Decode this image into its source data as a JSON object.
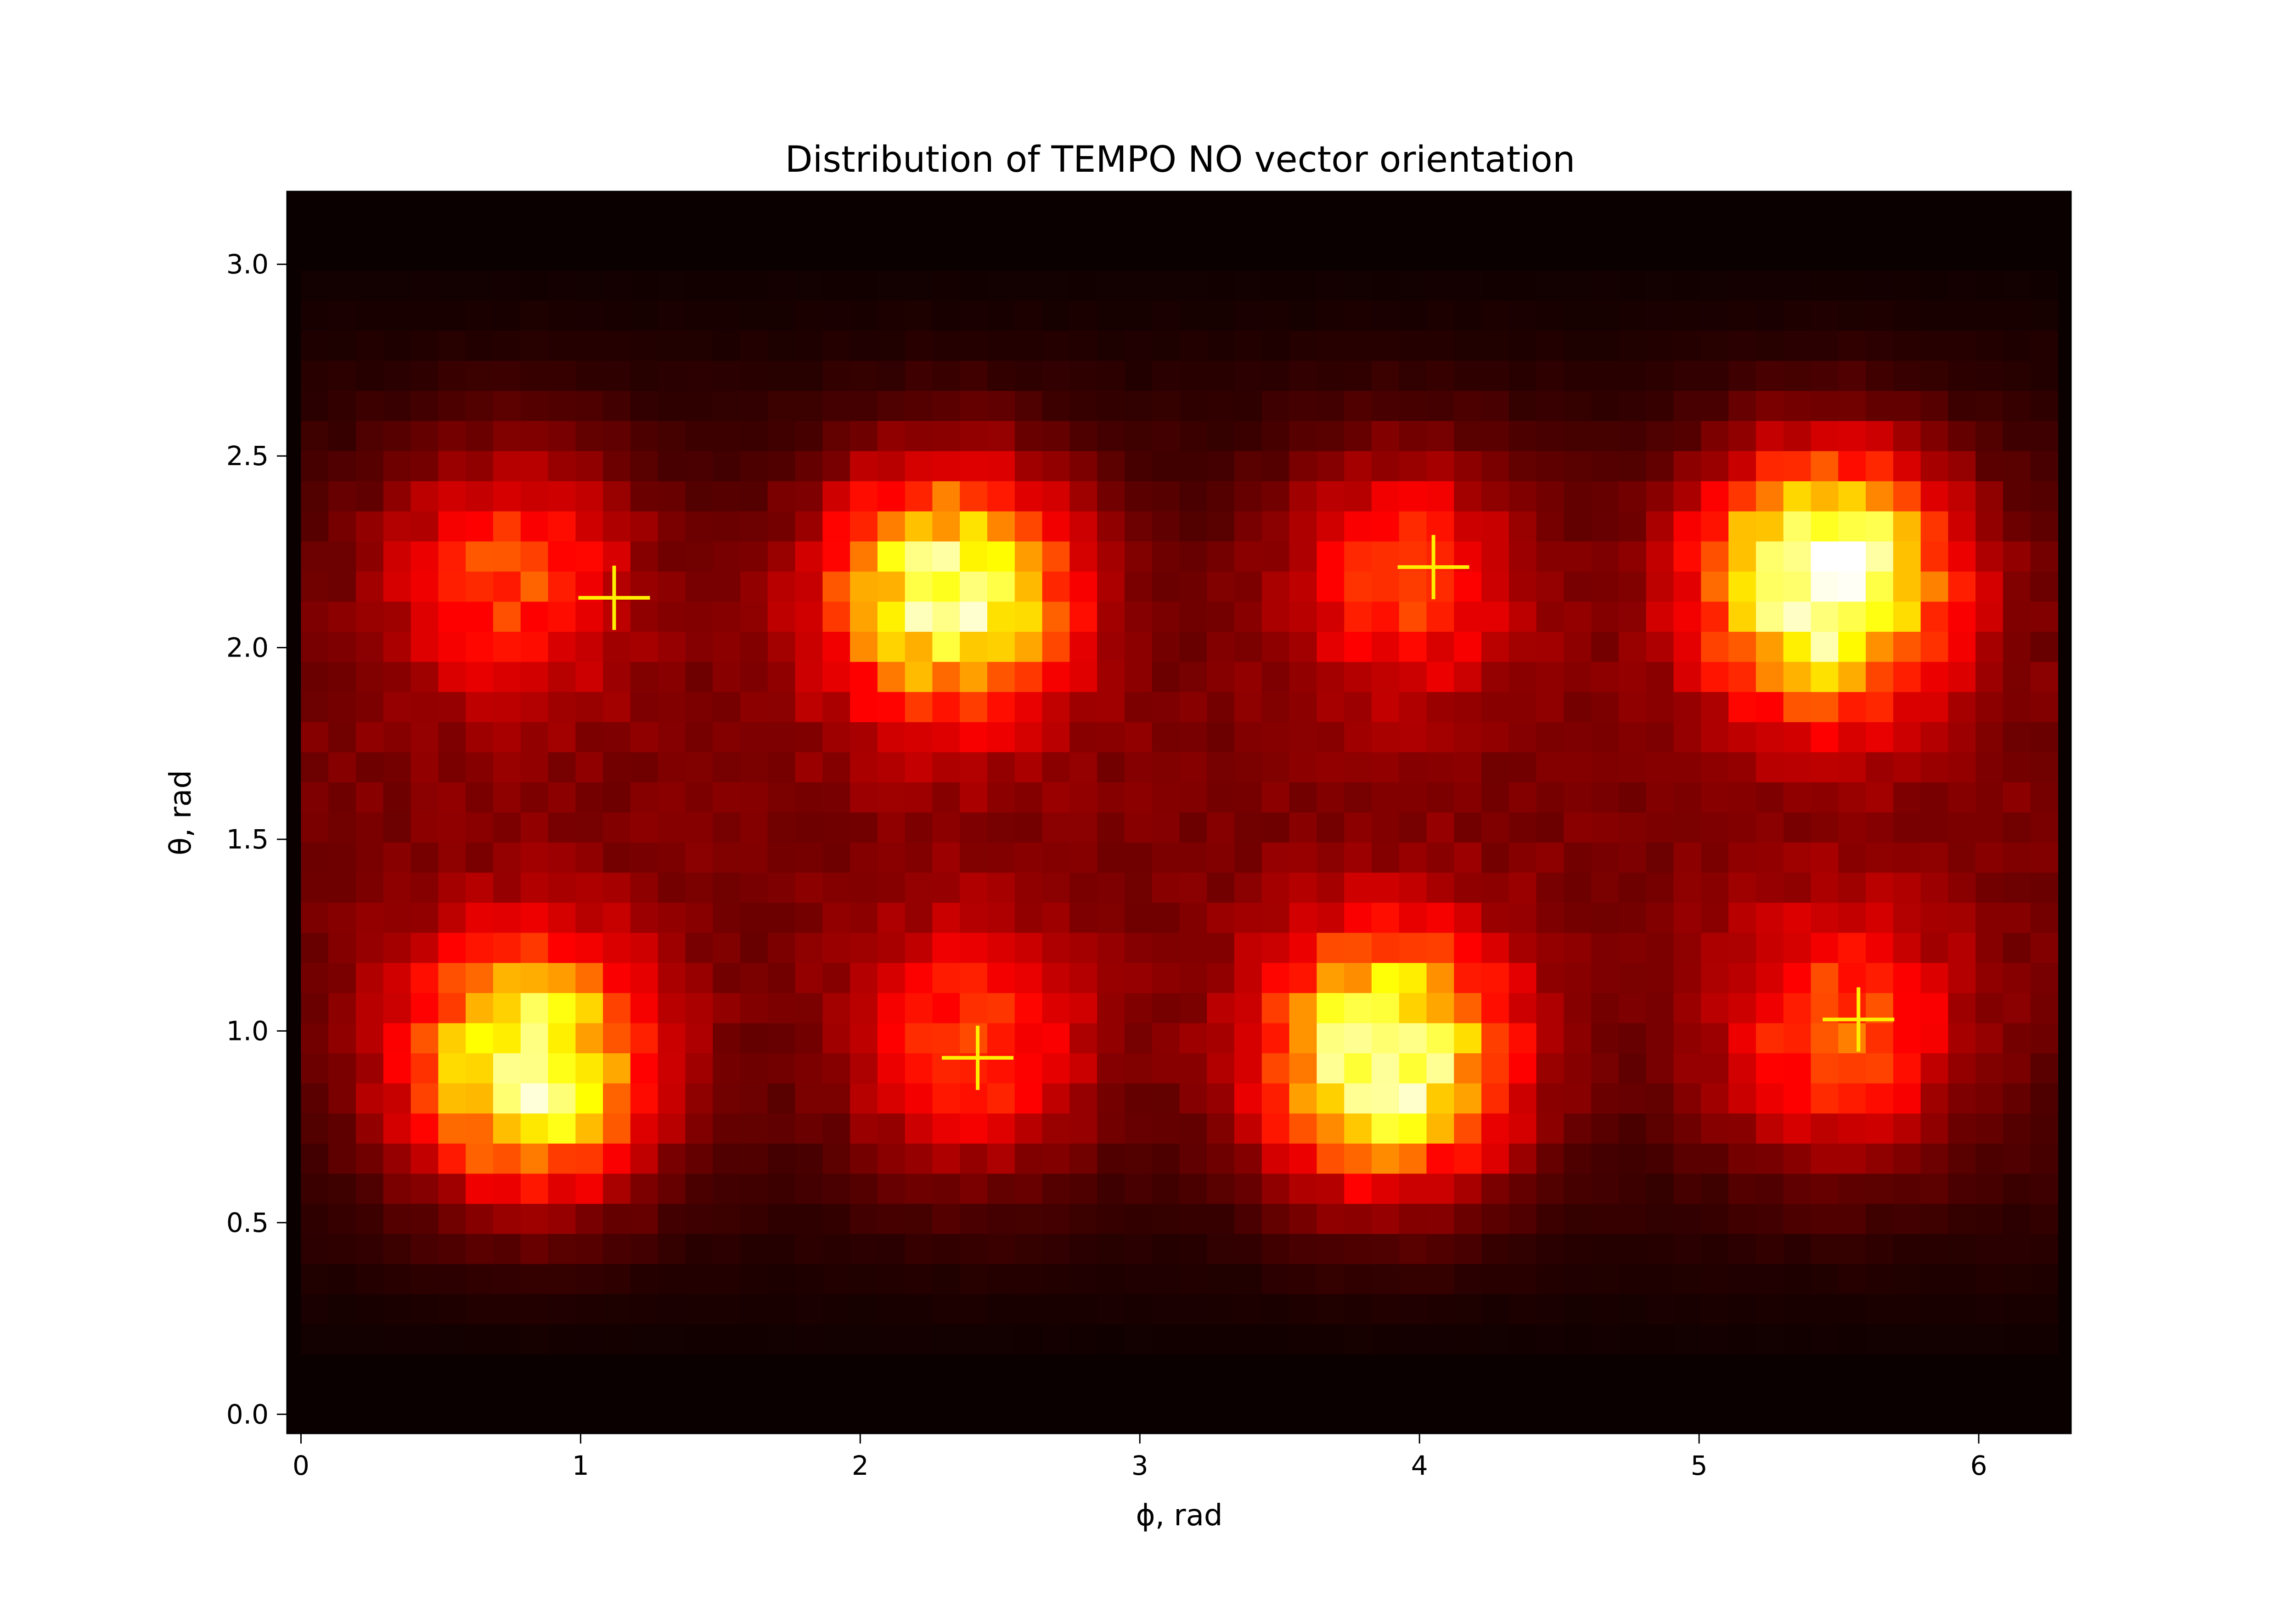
{
  "chart_data": {
    "type": "heatmap",
    "title": "Distribution of TEMPO NO vector orientation",
    "xlabel": "ϕ, rad",
    "ylabel": "θ, rad",
    "xlim": [
      -0.05,
      6.33
    ],
    "ylim": [
      -0.05,
      3.19
    ],
    "x_ticks": [
      0,
      1,
      2,
      3,
      4,
      5,
      6
    ],
    "x_tick_labels": [
      "0",
      "1",
      "2",
      "3",
      "4",
      "5",
      "6"
    ],
    "y_ticks": [
      0.0,
      0.5,
      1.0,
      1.5,
      2.0,
      2.5,
      3.0
    ],
    "y_tick_labels": [
      "0.0",
      "0.5",
      "1.0",
      "1.5",
      "2.0",
      "2.5",
      "3.0"
    ],
    "grid": false,
    "colormap": "hot",
    "bins": {
      "phi_count": 64,
      "theta_count": 40
    },
    "density_peaks": [
      {
        "phi": 0.82,
        "theta": 0.9,
        "intensity": 0.86
      },
      {
        "phi": 2.32,
        "theta": 2.15,
        "intensity": 0.84
      },
      {
        "phi": 3.88,
        "theta": 0.92,
        "intensity": 0.92
      },
      {
        "phi": 5.45,
        "theta": 2.18,
        "intensity": 1.0
      },
      {
        "phi": 0.75,
        "theta": 2.2,
        "intensity": 0.38
      },
      {
        "phi": 2.4,
        "theta": 0.95,
        "intensity": 0.36
      },
      {
        "phi": 3.95,
        "theta": 2.2,
        "intensity": 0.36
      },
      {
        "phi": 5.5,
        "theta": 0.98,
        "intensity": 0.4
      }
    ],
    "markers": [
      {
        "phi": 1.12,
        "theta": 2.13
      },
      {
        "phi": 2.42,
        "theta": 0.93
      },
      {
        "phi": 4.05,
        "theta": 2.21
      },
      {
        "phi": 5.57,
        "theta": 1.03
      }
    ],
    "marker_color": "#ffee00",
    "background_color": "#0b0000"
  }
}
